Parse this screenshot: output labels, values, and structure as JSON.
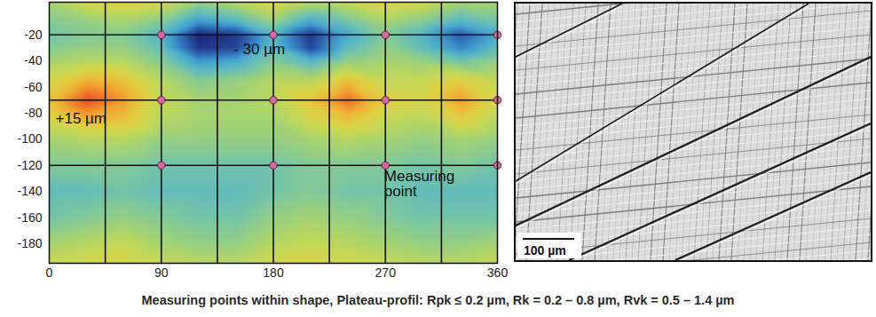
{
  "chart_data": {
    "type": "heatmap",
    "xlim": [
      0,
      360
    ],
    "xticks": [
      0,
      90,
      180,
      270,
      360
    ],
    "ylim": [
      -195,
      5
    ],
    "yticks": [
      -20,
      -40,
      -60,
      -80,
      -100,
      -120,
      -140,
      -160,
      -180
    ],
    "x": [
      0,
      30,
      60,
      90,
      120,
      150,
      180,
      210,
      240,
      270,
      300,
      330,
      360
    ],
    "y": [
      5,
      -10,
      -20,
      -30,
      -40,
      -55,
      -70,
      -85,
      -100,
      -120,
      -140,
      -160,
      -180,
      -195
    ],
    "cells": [
      [
        -4,
        2,
        4,
        2,
        -6,
        -2,
        4,
        -2,
        0,
        4,
        2,
        -4,
        -4
      ],
      [
        -8,
        -6,
        -4,
        -8,
        -18,
        -14,
        -6,
        -16,
        -10,
        -4,
        -8,
        -14,
        -10
      ],
      [
        -10,
        -8,
        -8,
        -14,
        -30,
        -28,
        -14,
        -28,
        -16,
        -8,
        -14,
        -24,
        -16
      ],
      [
        -8,
        -6,
        -6,
        -12,
        -28,
        -26,
        -12,
        -26,
        -12,
        -6,
        -12,
        -20,
        -12
      ],
      [
        -4,
        -2,
        -2,
        -8,
        -18,
        -16,
        -8,
        -14,
        -6,
        -4,
        -6,
        -10,
        -6
      ],
      [
        2,
        8,
        6,
        -2,
        -8,
        -6,
        -2,
        -2,
        6,
        0,
        0,
        4,
        0
      ],
      [
        6,
        15,
        10,
        0,
        -4,
        -4,
        -2,
        6,
        13,
        4,
        2,
        10,
        2
      ],
      [
        2,
        8,
        6,
        -2,
        -4,
        -4,
        -4,
        2,
        6,
        0,
        -2,
        4,
        -2
      ],
      [
        -4,
        -2,
        -2,
        -6,
        -6,
        -6,
        -6,
        -4,
        -2,
        -4,
        -6,
        -4,
        -6
      ],
      [
        -8,
        -8,
        -8,
        -10,
        -10,
        -10,
        -10,
        -8,
        -8,
        -8,
        -10,
        -8,
        -10
      ],
      [
        -12,
        -12,
        -10,
        -12,
        -12,
        -12,
        -10,
        -8,
        -10,
        -10,
        -12,
        -12,
        -12
      ],
      [
        -10,
        -8,
        -6,
        -8,
        -10,
        -10,
        -6,
        -4,
        -6,
        -8,
        -10,
        -10,
        -10
      ],
      [
        -4,
        -2,
        0,
        -4,
        -6,
        -6,
        -2,
        0,
        -2,
        -4,
        -6,
        -6,
        -4
      ],
      [
        0,
        2,
        3,
        0,
        -2,
        -2,
        2,
        3,
        2,
        0,
        -2,
        -2,
        0
      ]
    ],
    "color_range": [
      -30,
      15
    ],
    "grid_lines": {
      "x": [
        45,
        90,
        135,
        180,
        225,
        270,
        315
      ],
      "y": [
        -20,
        -70,
        -120
      ]
    },
    "points": {
      "x": [
        90,
        180,
        270,
        360,
        90,
        180,
        270,
        360,
        90,
        180,
        270,
        360
      ],
      "y": [
        -20,
        -20,
        -20,
        -20,
        -70,
        -70,
        -70,
        -70,
        -120,
        -120,
        -120,
        -120
      ]
    },
    "annotations": [
      {
        "text": "- 30 µm",
        "x": 148,
        "y": -31
      },
      {
        "text": "+15 µm",
        "x": 5,
        "y": -84
      },
      {
        "text": "Measuring point",
        "x": 269,
        "y": -134
      }
    ]
  },
  "micrograph": {
    "scale_bar": "100 µm"
  },
  "caption": "Measuring points within shape, Plateau-profil: Rpk ≤ 0.2 µm, Rk = 0.2 – 0.8 µm, Rvk = 0.5 – 1.4 µm"
}
